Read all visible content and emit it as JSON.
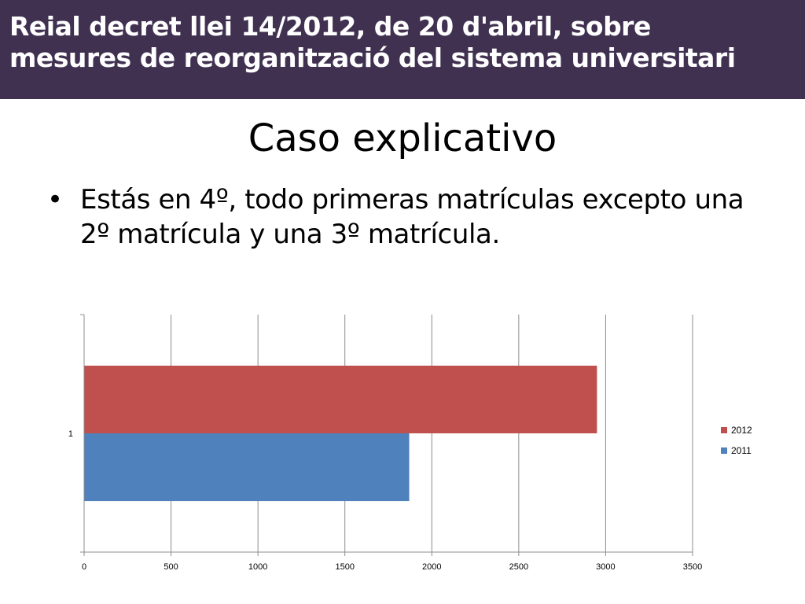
{
  "header": {
    "title_line1": "Reial decret llei 14/2012, de 20 d'abril, sobre",
    "title_line2": "mesures de reorganització del sistema universitari"
  },
  "slide": {
    "title": "Caso explicativo",
    "bullet_symbol": "•",
    "bullet_text": "Estás en 4º, todo primeras matrículas excepto una 2º matrícula y una 3º matrícula."
  },
  "chart_data": {
    "type": "bar",
    "orientation": "horizontal",
    "categories": [
      "1"
    ],
    "series": [
      {
        "name": "2012",
        "values": [
          2950
        ],
        "color": "#C0504D"
      },
      {
        "name": "2011",
        "values": [
          1870
        ],
        "color": "#4F81BD"
      }
    ],
    "xlim": [
      0,
      3500
    ],
    "x_ticks": [
      "0",
      "500",
      "1000",
      "1500",
      "2000",
      "2500",
      "3000",
      "3500"
    ],
    "grid": "vertical",
    "legend": "right",
    "title": "",
    "xlabel": "",
    "ylabel": ""
  }
}
